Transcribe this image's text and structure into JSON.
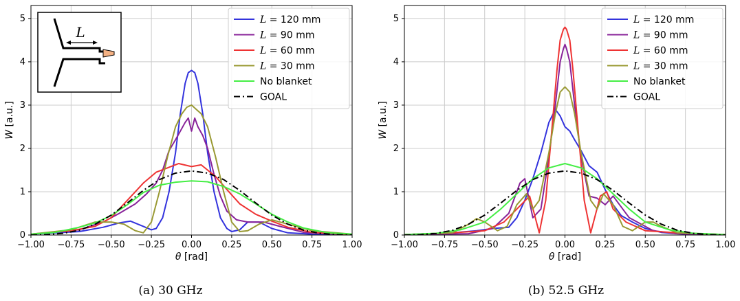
{
  "chart_data": [
    {
      "type": "line",
      "caption": "(a) 30 GHz",
      "xlabel": "θ [rad]",
      "ylabel": "W [a.u.]",
      "xlim": [
        -1.0,
        1.0
      ],
      "ylim": [
        0,
        5.3
      ],
      "xticks": [
        "−1.00",
        "−0.75",
        "−0.50",
        "−0.25",
        "0.00",
        "0.25",
        "0.50",
        "0.75",
        "1.00"
      ],
      "yticks": [
        "0",
        "1",
        "2",
        "3",
        "4",
        "5"
      ],
      "grid": true,
      "legend_position": "top-right",
      "inset_label": "L",
      "series": [
        {
          "name": "L = 120 mm",
          "color": "#3333dd",
          "dash": "solid",
          "x": [
            -1.0,
            -0.7,
            -0.55,
            -0.45,
            -0.38,
            -0.3,
            -0.25,
            -0.22,
            -0.18,
            -0.14,
            -0.1,
            -0.07,
            -0.04,
            -0.02,
            0.0,
            0.02,
            0.04,
            0.07,
            0.1,
            0.14,
            0.18,
            0.22,
            0.25,
            0.3,
            0.35,
            0.42,
            0.5,
            0.6,
            0.75,
            1.0
          ],
          "y": [
            0.02,
            0.08,
            0.18,
            0.28,
            0.32,
            0.2,
            0.12,
            0.15,
            0.4,
            1.0,
            1.9,
            2.8,
            3.5,
            3.75,
            3.8,
            3.75,
            3.5,
            2.8,
            1.9,
            1.0,
            0.4,
            0.15,
            0.08,
            0.12,
            0.3,
            0.3,
            0.15,
            0.05,
            0.02,
            0.01
          ]
        },
        {
          "name": "L = 90 mm",
          "color": "#882299",
          "dash": "solid",
          "x": [
            -1.0,
            -0.7,
            -0.55,
            -0.45,
            -0.35,
            -0.28,
            -0.22,
            -0.18,
            -0.14,
            -0.1,
            -0.07,
            -0.04,
            -0.02,
            0.0,
            0.02,
            0.04,
            0.07,
            0.1,
            0.14,
            0.18,
            0.22,
            0.28,
            0.35,
            0.45,
            0.55,
            0.7,
            1.0
          ],
          "y": [
            0.02,
            0.12,
            0.3,
            0.5,
            0.72,
            0.95,
            1.2,
            1.5,
            1.95,
            2.2,
            2.4,
            2.6,
            2.7,
            2.4,
            2.7,
            2.5,
            2.3,
            2.0,
            1.4,
            0.9,
            0.55,
            0.35,
            0.3,
            0.3,
            0.2,
            0.06,
            0.01
          ]
        },
        {
          "name": "L = 60 mm",
          "color": "#ee3333",
          "dash": "solid",
          "x": [
            -1.0,
            -0.75,
            -0.6,
            -0.5,
            -0.4,
            -0.3,
            -0.22,
            -0.15,
            -0.08,
            0.0,
            0.06,
            0.1,
            0.15,
            0.22,
            0.3,
            0.4,
            0.5,
            0.6,
            0.75,
            1.0
          ],
          "y": [
            0.02,
            0.1,
            0.2,
            0.4,
            0.8,
            1.2,
            1.45,
            1.55,
            1.65,
            1.58,
            1.62,
            1.5,
            1.35,
            1.05,
            0.72,
            0.48,
            0.32,
            0.18,
            0.06,
            0.01
          ]
        },
        {
          "name": "L = 30 mm",
          "color": "#999933",
          "dash": "solid",
          "x": [
            -1.0,
            -0.75,
            -0.6,
            -0.5,
            -0.42,
            -0.35,
            -0.3,
            -0.25,
            -0.2,
            -0.15,
            -0.1,
            -0.06,
            -0.03,
            0.0,
            0.03,
            0.06,
            0.1,
            0.15,
            0.2,
            0.25,
            0.3,
            0.35,
            0.42,
            0.5,
            0.6,
            0.75,
            1.0
          ],
          "y": [
            0.02,
            0.12,
            0.3,
            0.3,
            0.25,
            0.1,
            0.05,
            0.3,
            1.0,
            1.8,
            2.5,
            2.8,
            2.95,
            3.0,
            2.9,
            2.8,
            2.5,
            1.8,
            1.0,
            0.3,
            0.08,
            0.1,
            0.25,
            0.35,
            0.25,
            0.1,
            0.02
          ]
        },
        {
          "name": "No blanket",
          "color": "#44ee44",
          "dash": "solid",
          "x": [
            -1.0,
            -0.85,
            -0.7,
            -0.6,
            -0.5,
            -0.4,
            -0.3,
            -0.2,
            -0.1,
            0.0,
            0.1,
            0.2,
            0.3,
            0.4,
            0.5,
            0.6,
            0.7,
            0.85,
            1.0
          ],
          "y": [
            0.02,
            0.06,
            0.18,
            0.28,
            0.45,
            0.7,
            0.98,
            1.15,
            1.22,
            1.25,
            1.23,
            1.12,
            0.95,
            0.72,
            0.48,
            0.3,
            0.16,
            0.05,
            0.02
          ]
        },
        {
          "name": "GOAL",
          "color": "#000000",
          "dash": "dashdot",
          "x": [
            -1.0,
            -0.9,
            -0.8,
            -0.7,
            -0.6,
            -0.5,
            -0.4,
            -0.3,
            -0.2,
            -0.1,
            0.0,
            0.1,
            0.2,
            0.3,
            0.4,
            0.5,
            0.6,
            0.7,
            0.8,
            0.9,
            1.0
          ],
          "y": [
            0.0,
            0.01,
            0.04,
            0.11,
            0.25,
            0.46,
            0.74,
            1.03,
            1.28,
            1.43,
            1.48,
            1.43,
            1.28,
            1.03,
            0.74,
            0.46,
            0.25,
            0.11,
            0.04,
            0.01,
            0.0
          ]
        }
      ]
    },
    {
      "type": "line",
      "caption": "(b) 52.5 GHz",
      "xlabel": "θ [rad]",
      "ylabel": "W [a.u.]",
      "xlim": [
        -1.0,
        1.0
      ],
      "ylim": [
        0,
        5.3
      ],
      "xticks": [
        "−1.00",
        "−0.75",
        "−0.50",
        "−0.25",
        "0.00",
        "0.25",
        "0.50",
        "0.75",
        "1.00"
      ],
      "yticks": [
        "0",
        "1",
        "2",
        "3",
        "4",
        "5"
      ],
      "grid": true,
      "legend_position": "top-right",
      "series": [
        {
          "name": "L = 120 mm",
          "color": "#3333dd",
          "dash": "solid",
          "x": [
            -1.0,
            -0.7,
            -0.55,
            -0.45,
            -0.35,
            -0.3,
            -0.25,
            -0.2,
            -0.15,
            -0.1,
            -0.06,
            -0.03,
            0.0,
            0.03,
            0.06,
            0.1,
            0.15,
            0.2,
            0.25,
            0.3,
            0.35,
            0.42,
            0.5,
            0.6,
            0.75,
            1.0
          ],
          "y": [
            0.01,
            0.05,
            0.1,
            0.15,
            0.18,
            0.4,
            0.8,
            1.3,
            1.9,
            2.6,
            2.9,
            2.75,
            2.5,
            2.4,
            2.2,
            1.95,
            1.6,
            1.45,
            1.05,
            0.7,
            0.45,
            0.3,
            0.15,
            0.06,
            0.02,
            0.01
          ]
        },
        {
          "name": "L = 90 mm",
          "color": "#882299",
          "dash": "solid",
          "x": [
            -1.0,
            -0.6,
            -0.45,
            -0.35,
            -0.28,
            -0.25,
            -0.2,
            -0.15,
            -0.1,
            -0.06,
            -0.03,
            -0.01,
            0.0,
            0.01,
            0.03,
            0.06,
            0.1,
            0.15,
            0.2,
            0.25,
            0.3,
            0.4,
            0.55,
            0.7,
            1.0
          ],
          "y": [
            0.01,
            0.03,
            0.15,
            0.5,
            1.2,
            1.3,
            0.4,
            0.6,
            1.8,
            3.0,
            4.0,
            4.3,
            4.4,
            4.3,
            4.0,
            3.0,
            1.8,
            0.9,
            0.85,
            0.7,
            0.9,
            0.4,
            0.1,
            0.03,
            0.01
          ]
        },
        {
          "name": "L = 60 mm",
          "color": "#ee3333",
          "dash": "solid",
          "x": [
            -1.0,
            -0.7,
            -0.5,
            -0.38,
            -0.3,
            -0.22,
            -0.16,
            -0.12,
            -0.08,
            -0.05,
            -0.03,
            -0.01,
            0.0,
            0.01,
            0.03,
            0.05,
            0.08,
            0.12,
            0.16,
            0.22,
            0.26,
            0.3,
            0.38,
            0.5,
            0.7,
            1.0
          ],
          "y": [
            0.01,
            0.05,
            0.1,
            0.3,
            0.6,
            0.9,
            0.05,
            0.8,
            2.5,
            3.8,
            4.5,
            4.75,
            4.8,
            4.75,
            4.5,
            3.8,
            2.5,
            0.8,
            0.05,
            0.9,
            1.0,
            0.6,
            0.3,
            0.1,
            0.05,
            0.01
          ]
        },
        {
          "name": "L = 30 mm",
          "color": "#999933",
          "dash": "solid",
          "x": [
            -1.0,
            -0.7,
            -0.6,
            -0.55,
            -0.5,
            -0.42,
            -0.36,
            -0.3,
            -0.24,
            -0.2,
            -0.16,
            -0.1,
            -0.06,
            -0.03,
            0.0,
            0.03,
            0.06,
            0.1,
            0.16,
            0.2,
            0.24,
            0.3,
            0.36,
            0.42,
            0.5,
            0.55,
            0.6,
            0.7,
            1.0
          ],
          "y": [
            0.01,
            0.05,
            0.25,
            0.38,
            0.3,
            0.1,
            0.2,
            0.7,
            0.95,
            0.6,
            0.8,
            1.9,
            2.8,
            3.3,
            3.42,
            3.3,
            2.8,
            1.9,
            0.8,
            0.6,
            0.95,
            0.7,
            0.2,
            0.1,
            0.3,
            0.3,
            0.2,
            0.05,
            0.01
          ]
        },
        {
          "name": "No blanket",
          "color": "#44ee44",
          "dash": "solid",
          "x": [
            -1.0,
            -0.8,
            -0.65,
            -0.5,
            -0.4,
            -0.3,
            -0.2,
            -0.1,
            0.0,
            0.1,
            0.2,
            0.3,
            0.4,
            0.5,
            0.65,
            0.8,
            1.0
          ],
          "y": [
            0.01,
            0.04,
            0.12,
            0.3,
            0.6,
            0.95,
            1.3,
            1.55,
            1.65,
            1.55,
            1.3,
            0.95,
            0.6,
            0.3,
            0.12,
            0.04,
            0.01
          ]
        },
        {
          "name": "GOAL",
          "color": "#000000",
          "dash": "dashdot",
          "x": [
            -1.0,
            -0.9,
            -0.8,
            -0.7,
            -0.6,
            -0.5,
            -0.4,
            -0.3,
            -0.2,
            -0.1,
            0.0,
            0.1,
            0.2,
            0.3,
            0.4,
            0.5,
            0.6,
            0.7,
            0.8,
            0.9,
            1.0
          ],
          "y": [
            0.0,
            0.01,
            0.04,
            0.11,
            0.25,
            0.46,
            0.74,
            1.03,
            1.28,
            1.43,
            1.48,
            1.43,
            1.28,
            1.03,
            0.74,
            0.46,
            0.25,
            0.11,
            0.04,
            0.01,
            0.0
          ]
        }
      ]
    }
  ]
}
